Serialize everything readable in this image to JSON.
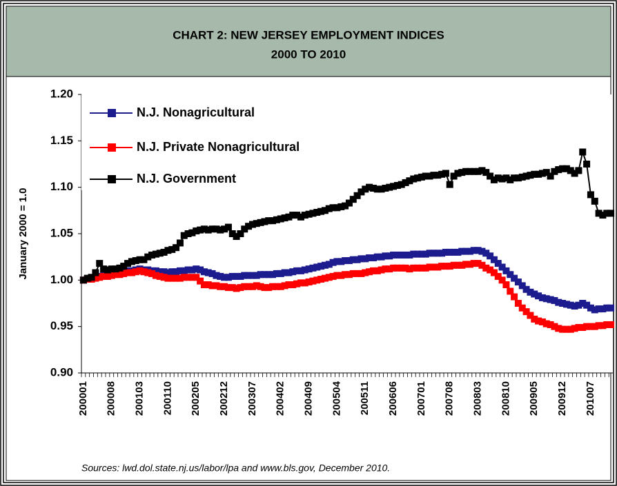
{
  "chart_data": {
    "type": "line",
    "title": "CHART 2: NEW JERSEY EMPLOYMENT INDICES",
    "subtitle": "2000 TO 2010",
    "y_label": "January 2000 = 1.0",
    "source": "Sources:  lwd.dol.state.nj.us/labor/lpa and www.bls.gov, December 2010.",
    "categories": [
      "200001",
      null,
      null,
      null,
      null,
      null,
      null,
      "200008",
      null,
      null,
      null,
      null,
      null,
      null,
      "200103",
      null,
      null,
      null,
      null,
      null,
      null,
      "200110",
      null,
      null,
      null,
      null,
      null,
      null,
      "200205",
      null,
      null,
      null,
      null,
      null,
      null,
      "200212",
      null,
      null,
      null,
      null,
      null,
      null,
      "200307",
      null,
      null,
      null,
      null,
      null,
      null,
      "200402",
      null,
      null,
      null,
      null,
      null,
      null,
      "200409",
      null,
      null,
      null,
      null,
      null,
      null,
      "200504",
      null,
      null,
      null,
      null,
      null,
      null,
      "200511",
      null,
      null,
      null,
      null,
      null,
      null,
      "200606",
      null,
      null,
      null,
      null,
      null,
      null,
      "200701",
      null,
      null,
      null,
      null,
      null,
      null,
      "200708",
      null,
      null,
      null,
      null,
      null,
      null,
      "200803",
      null,
      null,
      null,
      null,
      null,
      null,
      "200810",
      null,
      null,
      null,
      null,
      null,
      null,
      "200905",
      null,
      null,
      null,
      null,
      null,
      null,
      "200912",
      null,
      null,
      null,
      null,
      null,
      null,
      "201007",
      null,
      null,
      null,
      null,
      null
    ],
    "series": [
      {
        "name": "N.J. Nonagricultural",
        "color": "#1c1c8f",
        "values": [
          1.0,
          1.001,
          1.002,
          1.003,
          1.004,
          1.005,
          1.006,
          1.007,
          1.008,
          1.008,
          1.009,
          1.01,
          1.01,
          1.011,
          1.012,
          1.011,
          1.011,
          1.01,
          1.01,
          1.009,
          1.009,
          1.008,
          1.009,
          1.009,
          1.01,
          1.01,
          1.011,
          1.011,
          1.012,
          1.011,
          1.009,
          1.008,
          1.007,
          1.005,
          1.004,
          1.003,
          1.003,
          1.004,
          1.004,
          1.004,
          1.005,
          1.005,
          1.005,
          1.005,
          1.006,
          1.006,
          1.006,
          1.006,
          1.007,
          1.007,
          1.008,
          1.008,
          1.009,
          1.01,
          1.01,
          1.011,
          1.012,
          1.013,
          1.014,
          1.015,
          1.016,
          1.017,
          1.019,
          1.02,
          1.02,
          1.021,
          1.021,
          1.022,
          1.022,
          1.023,
          1.023,
          1.024,
          1.024,
          1.025,
          1.025,
          1.026,
          1.026,
          1.027,
          1.027,
          1.027,
          1.027,
          1.027,
          1.028,
          1.028,
          1.028,
          1.028,
          1.029,
          1.029,
          1.029,
          1.029,
          1.03,
          1.03,
          1.03,
          1.03,
          1.031,
          1.031,
          1.031,
          1.032,
          1.032,
          1.031,
          1.029,
          1.026,
          1.022,
          1.018,
          1.014,
          1.01,
          1.006,
          1.002,
          0.998,
          0.994,
          0.99,
          0.987,
          0.985,
          0.983,
          0.981,
          0.98,
          0.979,
          0.978,
          0.976,
          0.975,
          0.974,
          0.973,
          0.972,
          0.973,
          0.975,
          0.973,
          0.97,
          0.968,
          0.969,
          0.969,
          0.97,
          0.97
        ]
      },
      {
        "name": "N.J. Private Nonagricultural",
        "color": "#ff0000",
        "values": [
          1.0,
          1.001,
          1.001,
          1.002,
          1.003,
          1.004,
          1.004,
          1.005,
          1.006,
          1.006,
          1.007,
          1.008,
          1.008,
          1.009,
          1.01,
          1.009,
          1.008,
          1.007,
          1.005,
          1.004,
          1.003,
          1.002,
          1.002,
          1.002,
          1.002,
          1.003,
          1.003,
          1.003,
          1.003,
          0.999,
          0.995,
          0.995,
          0.994,
          0.994,
          0.993,
          0.993,
          0.992,
          0.992,
          0.991,
          0.992,
          0.993,
          0.993,
          0.993,
          0.994,
          0.993,
          0.992,
          0.992,
          0.993,
          0.993,
          0.993,
          0.994,
          0.995,
          0.995,
          0.996,
          0.997,
          0.997,
          0.998,
          0.999,
          1.0,
          1.001,
          1.002,
          1.003,
          1.004,
          1.005,
          1.005,
          1.006,
          1.006,
          1.007,
          1.007,
          1.007,
          1.008,
          1.009,
          1.01,
          1.01,
          1.011,
          1.012,
          1.012,
          1.013,
          1.013,
          1.013,
          1.013,
          1.012,
          1.013,
          1.013,
          1.013,
          1.013,
          1.014,
          1.014,
          1.014,
          1.015,
          1.015,
          1.015,
          1.016,
          1.016,
          1.016,
          1.017,
          1.017,
          1.018,
          1.018,
          1.016,
          1.013,
          1.011,
          1.008,
          1.004,
          1.0,
          0.995,
          0.988,
          0.982,
          0.975,
          0.97,
          0.966,
          0.962,
          0.958,
          0.956,
          0.955,
          0.953,
          0.952,
          0.95,
          0.948,
          0.947,
          0.947,
          0.947,
          0.948,
          0.949,
          0.949,
          0.95,
          0.95,
          0.95,
          0.951,
          0.951,
          0.952,
          0.952
        ]
      },
      {
        "name": "N.J. Government",
        "color": "#000000",
        "values": [
          1.0,
          1.002,
          1.003,
          1.008,
          1.018,
          1.012,
          1.011,
          1.012,
          1.012,
          1.013,
          1.015,
          1.018,
          1.02,
          1.021,
          1.022,
          1.022,
          1.025,
          1.027,
          1.028,
          1.029,
          1.03,
          1.032,
          1.033,
          1.035,
          1.04,
          1.048,
          1.05,
          1.051,
          1.053,
          1.054,
          1.055,
          1.054,
          1.055,
          1.055,
          1.054,
          1.055,
          1.057,
          1.05,
          1.047,
          1.05,
          1.055,
          1.058,
          1.06,
          1.061,
          1.062,
          1.063,
          1.064,
          1.064,
          1.065,
          1.066,
          1.067,
          1.068,
          1.07,
          1.07,
          1.068,
          1.07,
          1.071,
          1.072,
          1.073,
          1.074,
          1.075,
          1.077,
          1.078,
          1.078,
          1.079,
          1.08,
          1.083,
          1.087,
          1.091,
          1.095,
          1.098,
          1.1,
          1.099,
          1.098,
          1.098,
          1.099,
          1.1,
          1.101,
          1.102,
          1.103,
          1.105,
          1.107,
          1.109,
          1.11,
          1.111,
          1.112,
          1.112,
          1.113,
          1.113,
          1.114,
          1.115,
          1.103,
          1.112,
          1.115,
          1.116,
          1.117,
          1.117,
          1.117,
          1.117,
          1.118,
          1.116,
          1.112,
          1.108,
          1.11,
          1.109,
          1.11,
          1.108,
          1.11,
          1.11,
          1.111,
          1.112,
          1.113,
          1.114,
          1.114,
          1.115,
          1.116,
          1.112,
          1.117,
          1.119,
          1.12,
          1.12,
          1.118,
          1.115,
          1.118,
          1.138,
          1.125,
          1.092,
          1.085,
          1.072,
          1.07,
          1.072,
          1.072
        ]
      }
    ],
    "ylim": [
      0.9,
      1.2
    ],
    "yticks": [
      {
        "value": 0.9,
        "label": "0.90"
      },
      {
        "value": 0.95,
        "label": "0.95"
      },
      {
        "value": 1.0,
        "label": "1.00"
      },
      {
        "value": 1.05,
        "label": "1.05"
      },
      {
        "value": 1.1,
        "label": "1.10"
      },
      {
        "value": 1.15,
        "label": "1.15"
      },
      {
        "value": 1.2,
        "label": "1.20"
      }
    ],
    "grid": false,
    "legend": "top-left"
  }
}
